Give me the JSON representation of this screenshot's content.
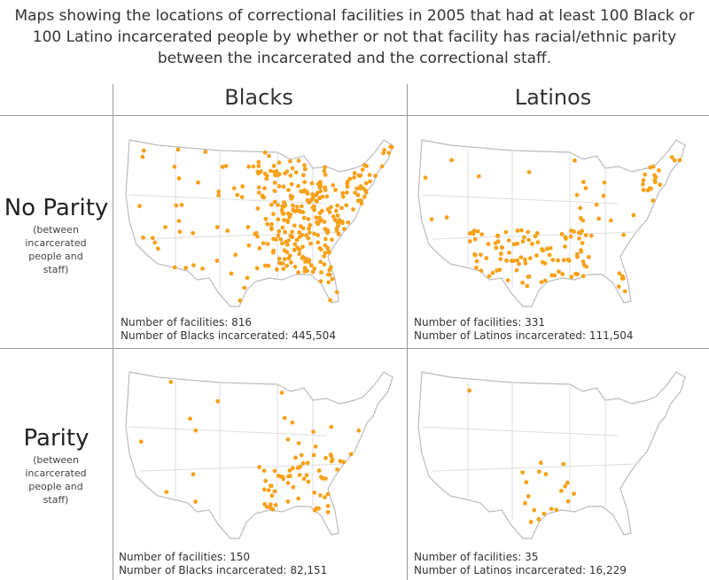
{
  "title": "Maps showing the locations of correctional facilities in 2005 that had at least 100 Black or 100 Latino incarcerated people by whether or not that facility has racial/ethnic parity between the incarcerated and the correctional staff.",
  "columns": [
    "Blacks",
    "Latinos"
  ],
  "rows": [
    {
      "label": "No Parity",
      "note": "(between incarcerated people and staff)"
    },
    {
      "label": "Parity",
      "note": "(between incarcerated people and staff)"
    }
  ],
  "panels": [
    [
      {
        "facilities": "Number of facilities: 816",
        "incarcerated": "Number of Blacks incarcerated: 445,504"
      },
      {
        "facilities": "Number of facilities: 331",
        "incarcerated": "Number of Latinos incarcerated: 111,504"
      }
    ],
    [
      {
        "facilities": "Number of facilities: 150",
        "incarcerated": "Number of Blacks incarcerated: 82,151"
      },
      {
        "facilities": "Number of facilities: 35",
        "incarcerated": "Number of Latinos incarcerated: 16,229"
      }
    ]
  ]
}
